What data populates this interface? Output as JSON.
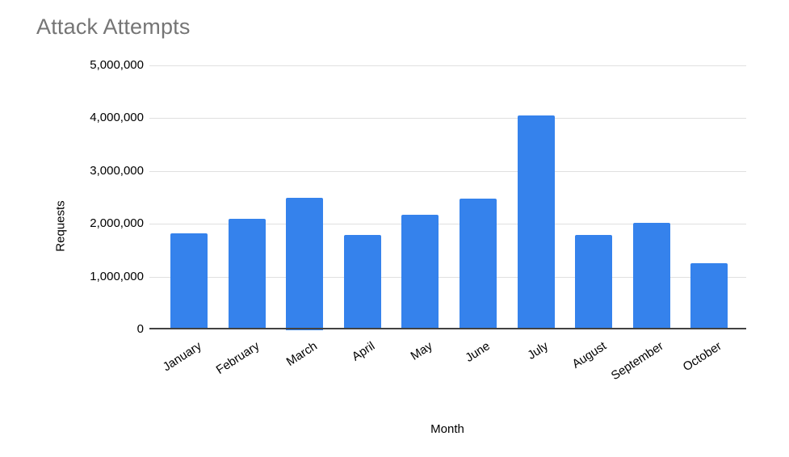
{
  "chart_data": {
    "type": "bar",
    "title": "Attack Attempts",
    "xlabel": "Month",
    "ylabel": "Requests",
    "categories": [
      "January",
      "February",
      "March",
      "April",
      "May",
      "June",
      "July",
      "August",
      "September",
      "October"
    ],
    "values": [
      1820000,
      2100000,
      2500000,
      1790000,
      2170000,
      2480000,
      4050000,
      1790000,
      2020000,
      1250000
    ],
    "ylim": [
      0,
      5000000
    ],
    "yticks": [
      0,
      1000000,
      2000000,
      3000000,
      4000000,
      5000000
    ],
    "ytick_labels": [
      "0",
      "1,000,000",
      "2,000,000",
      "3,000,000",
      "4,000,000",
      "5,000,000"
    ],
    "grid": true,
    "legend": "none",
    "colors": {
      "bar": "#3582ec",
      "title_text": "#757575",
      "axis_text": "#000000",
      "gridline": "#e0e0e0",
      "axis_line": "#424242",
      "background": "#ffffff"
    }
  }
}
